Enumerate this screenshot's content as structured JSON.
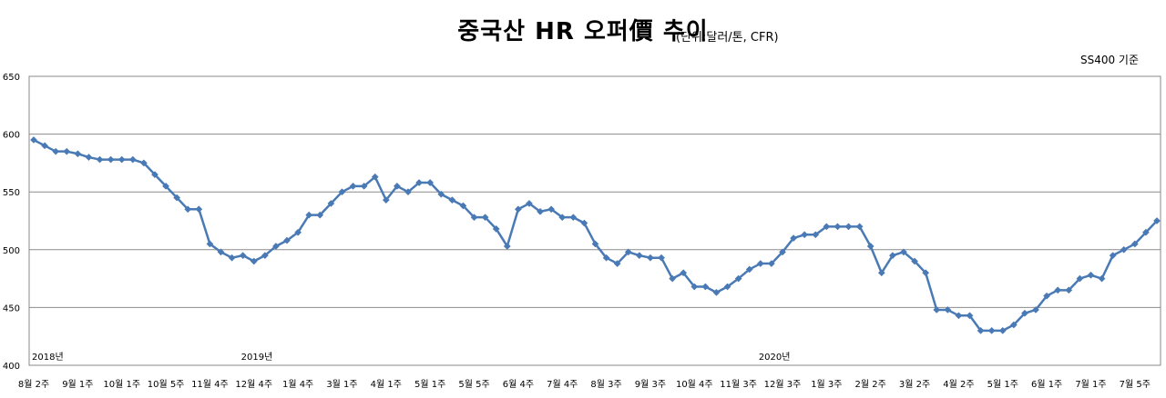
{
  "chart_data": {
    "type": "line",
    "title": "중국산 HR 오퍼價 추이",
    "subtitle": "(단위:달러/톤, CFR)",
    "annotation": "SS400 기준",
    "ylim": [
      400,
      650
    ],
    "yticks": [
      400,
      450,
      500,
      550,
      600,
      650
    ],
    "grid": true,
    "legend": "none",
    "color": "#4a7ab5",
    "x_tick_labels": [
      "8월 2주",
      "9월 1주",
      "10월 1주",
      "10월 5주",
      "11월 4주",
      "12월 4주",
      "1월 4주",
      "3월 1주",
      "4월 1주",
      "5월 1주",
      "5월 5주",
      "6월 4주",
      "7월 4주",
      "8월 3주",
      "9월 3주",
      "10월 4주",
      "11월 3주",
      "12월 3주",
      "1월 3주",
      "2월 2주",
      "3월 2주",
      "4월 2주",
      "5월 1주",
      "6월 1주",
      "7월 1주",
      "7월 5주"
    ],
    "year_labels": [
      {
        "label": "2018년",
        "index": 0
      },
      {
        "label": "2019년",
        "index": 19
      },
      {
        "label": "2020년",
        "index": 66
      }
    ],
    "series": [
      {
        "values": [
          595,
          590,
          585,
          585,
          583,
          580,
          578,
          578,
          578,
          578,
          575,
          565,
          555,
          545,
          535,
          535,
          505,
          498,
          493,
          495,
          490,
          495,
          503,
          508,
          515,
          530,
          530,
          540,
          550,
          555,
          555,
          563,
          543,
          555,
          550,
          558,
          558,
          548,
          543,
          538,
          528,
          528,
          518,
          503,
          535,
          540,
          533,
          535,
          528,
          528,
          523,
          505,
          493,
          488,
          498,
          495,
          493,
          493,
          475,
          480,
          468,
          468,
          463,
          468,
          475,
          483,
          488,
          488,
          498,
          510,
          513,
          513,
          520,
          520,
          520,
          520,
          503,
          480,
          495,
          498,
          490,
          480,
          448,
          448,
          443,
          443,
          430,
          430,
          430,
          435,
          445,
          448,
          460,
          465,
          465,
          475,
          478,
          475,
          495,
          500,
          505,
          515,
          525
        ]
      }
    ]
  }
}
